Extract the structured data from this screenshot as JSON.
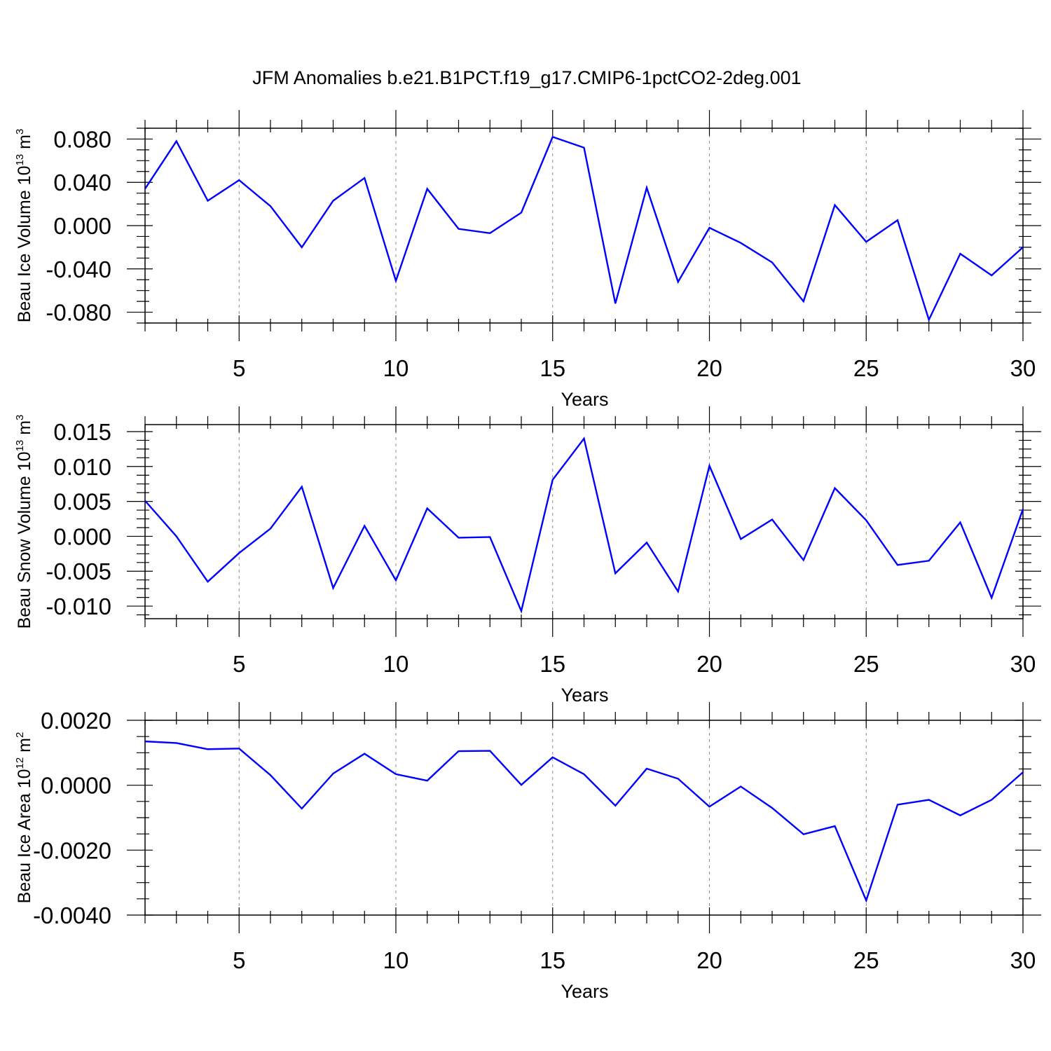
{
  "title": "JFM Anomalies b.e21.B1PCT.f19_g17.CMIP6-1pctCO2-2deg.001",
  "style": {
    "line_color": "#0000ff",
    "axis_color": "#000000",
    "grid_color": "#8c8c8c"
  },
  "chart_data": [
    {
      "type": "line",
      "ylabel_main": "Beau Ice Volume 10",
      "ylabel_exp": "13",
      "ylabel_unit": " m",
      "ylabel_unit_exp": "3",
      "xlabel": "Years",
      "xlim": [
        2,
        30
      ],
      "ylim": [
        -0.09,
        0.09
      ],
      "xticks": [
        5,
        10,
        15,
        20,
        25,
        30
      ],
      "yticks": [
        -0.08,
        -0.04,
        0.0,
        0.04,
        0.08
      ],
      "ytick_labels": [
        "-0.080",
        "-0.040",
        "0.000",
        "0.040",
        "0.080"
      ],
      "x": [
        2,
        3,
        4,
        5,
        6,
        7,
        8,
        9,
        10,
        11,
        12,
        13,
        14,
        15,
        16,
        17,
        18,
        19,
        20,
        21,
        22,
        23,
        24,
        25,
        26,
        27,
        28,
        29,
        30
      ],
      "series": [
        {
          "name": "Beau Ice Volume",
          "values": [
            0.034,
            0.078,
            0.023,
            0.042,
            0.018,
            -0.02,
            0.023,
            0.044,
            -0.051,
            0.034,
            -0.003,
            -0.007,
            0.012,
            0.082,
            0.072,
            -0.072,
            0.035,
            -0.052,
            -0.002,
            -0.016,
            -0.034,
            -0.07,
            0.019,
            -0.015,
            0.005,
            -0.087,
            -0.026,
            -0.046,
            -0.02
          ]
        }
      ]
    },
    {
      "type": "line",
      "ylabel_main": "Beau Snow Volume 10",
      "ylabel_exp": "13",
      "ylabel_unit": " m",
      "ylabel_unit_exp": "3",
      "xlabel": "Years",
      "xlim": [
        2,
        30
      ],
      "ylim": [
        -0.0118,
        0.016
      ],
      "xticks": [
        5,
        10,
        15,
        20,
        25,
        30
      ],
      "yticks": [
        -0.01,
        -0.005,
        0.0,
        0.005,
        0.01,
        0.015
      ],
      "ytick_labels": [
        "-0.010",
        "-0.005",
        "0.000",
        "0.005",
        "0.010",
        "0.015"
      ],
      "x": [
        2,
        3,
        4,
        5,
        6,
        7,
        8,
        9,
        10,
        11,
        12,
        13,
        14,
        15,
        16,
        17,
        18,
        19,
        20,
        21,
        22,
        23,
        24,
        25,
        26,
        27,
        28,
        29,
        30
      ],
      "series": [
        {
          "name": "Beau Snow Volume",
          "values": [
            0.0051,
            0.0,
            -0.0065,
            -0.0024,
            0.0011,
            0.0071,
            -0.0074,
            0.0015,
            -0.0063,
            0.004,
            -0.0002,
            -0.0001,
            -0.0107,
            0.0081,
            0.014,
            -0.0053,
            -0.0009,
            -0.0079,
            0.0101,
            -0.0004,
            0.0024,
            -0.0034,
            0.0069,
            0.0023,
            -0.0041,
            -0.0035,
            0.002,
            -0.0088,
            0.0039
          ]
        }
      ]
    },
    {
      "type": "line",
      "ylabel_main": "Beau Ice Area 10",
      "ylabel_exp": "12",
      "ylabel_unit": " m",
      "ylabel_unit_exp": "2",
      "xlabel": "Years",
      "xlim": [
        2,
        30
      ],
      "ylim": [
        -0.004,
        0.002
      ],
      "xticks": [
        5,
        10,
        15,
        20,
        25,
        30
      ],
      "yticks": [
        -0.004,
        -0.002,
        0.0,
        0.002
      ],
      "ytick_labels": [
        "-0.0040",
        "-0.0020",
        "0.0000",
        "0.0020"
      ],
      "x": [
        2,
        3,
        4,
        5,
        6,
        7,
        8,
        9,
        10,
        11,
        12,
        13,
        14,
        15,
        16,
        17,
        18,
        19,
        20,
        21,
        22,
        23,
        24,
        25,
        26,
        27,
        28,
        29,
        30
      ],
      "series": [
        {
          "name": "Beau Ice Area",
          "values": [
            0.00135,
            0.0013,
            0.00111,
            0.00113,
            0.00031,
            -0.00072,
            0.00036,
            0.00097,
            0.00034,
            0.00014,
            0.00105,
            0.00106,
            1e-05,
            0.00086,
            0.00034,
            -0.00063,
            0.00051,
            0.0002,
            -0.00066,
            -4e-05,
            -0.0007,
            -0.00151,
            -0.00126,
            -0.00355,
            -0.0006,
            -0.00045,
            -0.00093,
            -0.00045,
            0.0004
          ]
        }
      ]
    }
  ]
}
